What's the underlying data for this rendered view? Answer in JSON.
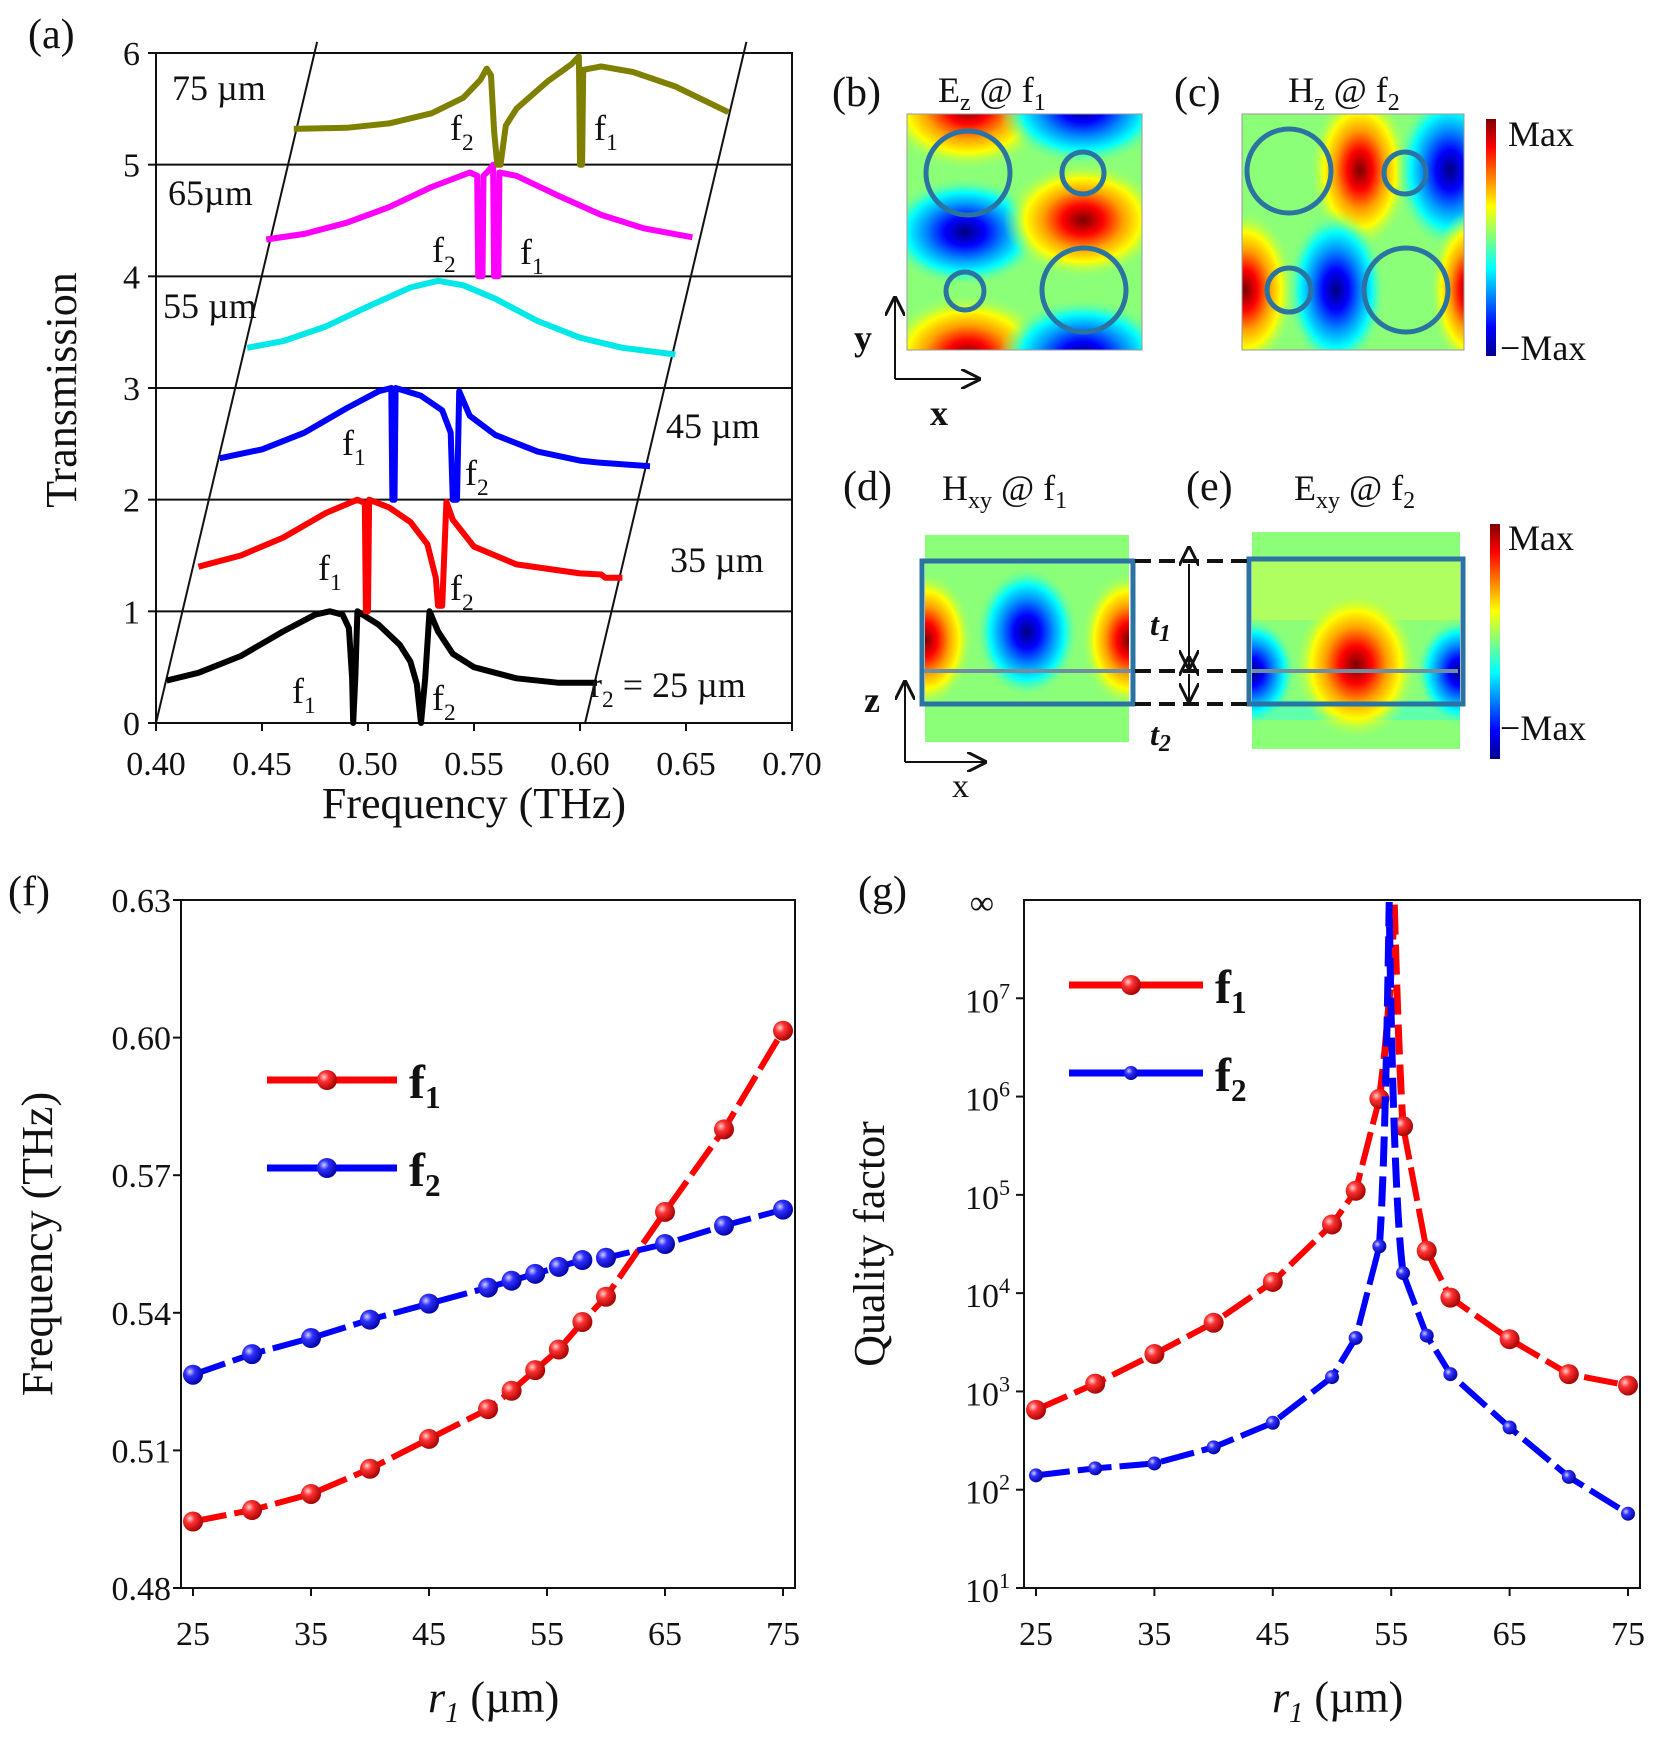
{
  "panel_labels": {
    "a": "(a)",
    "b": "(b)",
    "c": "(c)",
    "d": "(d)",
    "e": "(e)",
    "f": "(f)",
    "g": "(g)"
  },
  "field_maps": {
    "b": {
      "field": "E",
      "field_sub": "z",
      "at": " @ f",
      "freq_sub": "1"
    },
    "c": {
      "field": "H",
      "field_sub": "z",
      "at": " @ f",
      "freq_sub": "2"
    },
    "d": {
      "field": "H",
      "field_sub": "xy",
      "at": " @ f",
      "freq_sub": "1"
    },
    "e": {
      "field": "E",
      "field_sub": "xy",
      "at": " @ f",
      "freq_sub": "2"
    }
  },
  "colorbar": {
    "max_label": "Max",
    "min_label": "−Max",
    "colormap": "jet"
  },
  "coord_axes": {
    "top_vertical": "y",
    "top_horizontal": "x",
    "bottom_vertical": "z",
    "bottom_horizontal": "x"
  },
  "thickness": {
    "t1": "t",
    "t1_sub": "1",
    "t2": "t",
    "t2_sub": "2"
  },
  "colors": {
    "olive": "#808000",
    "magenta": "#ff00ff",
    "cyan": "#00e8e8",
    "blue": "#0000ff",
    "red": "#ff0000",
    "black": "#000000",
    "ring": "#2b73a0"
  },
  "chart_data": [
    {
      "id": "a",
      "type": "line",
      "xlabel": "Frequency (THz)",
      "ylabel": "Transmission",
      "xlim": [
        0.4,
        0.7
      ],
      "ylim": [
        0,
        6
      ],
      "xticks": [
        "0.40",
        "0.45",
        "0.50",
        "0.55",
        "0.60",
        "0.65",
        "0.70"
      ],
      "yticks": [
        "0",
        "1",
        "2",
        "3",
        "4",
        "5",
        "6"
      ],
      "grid": "horizontal lines at each integer",
      "series": [
        {
          "label": "r",
          "label_sub": "2",
          "label_rest": " = 25 µm",
          "color": "#000000",
          "annotations": [
            [
              "f",
              "1"
            ],
            [
              "f",
              "2"
            ]
          ],
          "points": [
            [
              0.405,
              0.38
            ],
            [
              0.42,
              0.45
            ],
            [
              0.44,
              0.6
            ],
            [
              0.46,
              0.82
            ],
            [
              0.475,
              0.97
            ],
            [
              0.482,
              1.0
            ],
            [
              0.488,
              0.97
            ],
            [
              0.491,
              0.85
            ],
            [
              0.4925,
              0.4
            ],
            [
              0.493,
              0
            ],
            [
              0.494,
              0.4
            ],
            [
              0.495,
              1.0
            ],
            [
              0.505,
              0.88
            ],
            [
              0.515,
              0.7
            ],
            [
              0.52,
              0.55
            ],
            [
              0.523,
              0.35
            ],
            [
              0.525,
              0
            ],
            [
              0.527,
              0.4
            ],
            [
              0.529,
              1.0
            ],
            [
              0.533,
              0.82
            ],
            [
              0.54,
              0.62
            ],
            [
              0.55,
              0.5
            ],
            [
              0.57,
              0.4
            ],
            [
              0.59,
              0.36
            ],
            [
              0.608,
              0.36
            ]
          ]
        },
        {
          "label": "35 µm",
          "color": "#ff0000",
          "annotations": [
            [
              "f",
              "1"
            ],
            [
              "f",
              "2"
            ]
          ],
          "points": [
            [
              0.42,
              1.4
            ],
            [
              0.44,
              1.5
            ],
            [
              0.46,
              1.66
            ],
            [
              0.48,
              1.88
            ],
            [
              0.495,
              2.0
            ],
            [
              0.4985,
              1.97
            ],
            [
              0.499,
              1.0
            ],
            [
              0.5,
              1.0
            ],
            [
              0.5005,
              2.0
            ],
            [
              0.51,
              1.93
            ],
            [
              0.52,
              1.8
            ],
            [
              0.528,
              1.6
            ],
            [
              0.532,
              1.3
            ],
            [
              0.533,
              1.05
            ],
            [
              0.535,
              1.05
            ],
            [
              0.537,
              1.98
            ],
            [
              0.54,
              1.82
            ],
            [
              0.55,
              1.58
            ],
            [
              0.57,
              1.42
            ],
            [
              0.6,
              1.34
            ],
            [
              0.61,
              1.33
            ],
            [
              0.612,
              1.3
            ],
            [
              0.62,
              1.3
            ]
          ]
        },
        {
          "label": "45 µm",
          "color": "#0000ff",
          "annotations": [
            [
              "f",
              "1"
            ],
            [
              "f",
              "2"
            ]
          ],
          "points": [
            [
              0.43,
              2.37
            ],
            [
              0.45,
              2.45
            ],
            [
              0.47,
              2.6
            ],
            [
              0.49,
              2.82
            ],
            [
              0.505,
              2.97
            ],
            [
              0.511,
              3.0
            ],
            [
              0.5115,
              2.0
            ],
            [
              0.5125,
              2.0
            ],
            [
              0.513,
              3.0
            ],
            [
              0.525,
              2.93
            ],
            [
              0.535,
              2.8
            ],
            [
              0.539,
              2.6
            ],
            [
              0.54,
              2.0
            ],
            [
              0.542,
              2.0
            ],
            [
              0.543,
              2.97
            ],
            [
              0.548,
              2.75
            ],
            [
              0.56,
              2.58
            ],
            [
              0.58,
              2.43
            ],
            [
              0.6,
              2.35
            ],
            [
              0.61,
              2.33
            ],
            [
              0.633,
              2.3
            ]
          ]
        },
        {
          "label": "55 µm",
          "color": "#00e8e8",
          "annotations": [],
          "points": [
            [
              0.443,
              3.36
            ],
            [
              0.46,
              3.42
            ],
            [
              0.48,
              3.55
            ],
            [
              0.5,
              3.73
            ],
            [
              0.52,
              3.9
            ],
            [
              0.533,
              3.96
            ],
            [
              0.545,
              3.92
            ],
            [
              0.56,
              3.8
            ],
            [
              0.58,
              3.6
            ],
            [
              0.6,
              3.45
            ],
            [
              0.62,
              3.36
            ],
            [
              0.645,
              3.3
            ]
          ]
        },
        {
          "label": "65µm",
          "color": "#ff00ff",
          "annotations": [
            [
              "f",
              "2"
            ],
            [
              "f",
              "1"
            ]
          ],
          "points": [
            [
              0.452,
              4.33
            ],
            [
              0.47,
              4.38
            ],
            [
              0.49,
              4.48
            ],
            [
              0.51,
              4.62
            ],
            [
              0.53,
              4.8
            ],
            [
              0.548,
              4.93
            ],
            [
              0.5515,
              4.9
            ],
            [
              0.552,
              4.0
            ],
            [
              0.554,
              4.0
            ],
            [
              0.5545,
              4.9
            ],
            [
              0.557,
              4.95
            ],
            [
              0.559,
              5.0
            ],
            [
              0.5595,
              4.0
            ],
            [
              0.5615,
              4.0
            ],
            [
              0.562,
              4.93
            ],
            [
              0.57,
              4.9
            ],
            [
              0.59,
              4.72
            ],
            [
              0.61,
              4.55
            ],
            [
              0.63,
              4.43
            ],
            [
              0.653,
              4.35
            ]
          ]
        },
        {
          "label": "75 µm",
          "color": "#808000",
          "annotations": [
            [
              "f",
              "2"
            ],
            [
              "f",
              "1"
            ]
          ],
          "points": [
            [
              0.465,
              5.32
            ],
            [
              0.49,
              5.33
            ],
            [
              0.51,
              5.37
            ],
            [
              0.53,
              5.46
            ],
            [
              0.545,
              5.6
            ],
            [
              0.553,
              5.76
            ],
            [
              0.556,
              5.86
            ],
            [
              0.558,
              5.8
            ],
            [
              0.5595,
              5.3
            ],
            [
              0.561,
              5.0
            ],
            [
              0.5625,
              5.0
            ],
            [
              0.565,
              5.35
            ],
            [
              0.57,
              5.5
            ],
            [
              0.585,
              5.75
            ],
            [
              0.596,
              5.9
            ],
            [
              0.5995,
              5.97
            ],
            [
              0.6,
              5.0
            ],
            [
              0.601,
              5.0
            ],
            [
              0.6015,
              5.85
            ],
            [
              0.61,
              5.88
            ],
            [
              0.625,
              5.83
            ],
            [
              0.645,
              5.7
            ],
            [
              0.67,
              5.47
            ]
          ]
        }
      ]
    },
    {
      "id": "f",
      "type": "line",
      "xlabel": "r",
      "xlabel_sub": "1",
      "xlabel_rest": " (µm)",
      "ylabel": "Frequency (THz)",
      "xlim": [
        25,
        75
      ],
      "ylim": [
        0.48,
        0.63
      ],
      "xticks": [
        "25",
        "35",
        "45",
        "55",
        "65",
        "75"
      ],
      "yticks": [
        "0.48",
        "0.51",
        "0.54",
        "0.57",
        "0.60",
        "0.63"
      ],
      "legend": "upper-left",
      "x": [
        25,
        30,
        35,
        40,
        45,
        50,
        52,
        54,
        56,
        58,
        60,
        65,
        70,
        75
      ],
      "series": [
        {
          "name": "f",
          "name_sub": "1",
          "color": "#ff0000",
          "values": [
            0.4945,
            0.497,
            0.5005,
            0.506,
            0.5125,
            0.519,
            0.523,
            0.5275,
            0.532,
            0.538,
            0.5435,
            0.562,
            0.58,
            0.6015
          ]
        },
        {
          "name": "f",
          "name_sub": "2",
          "color": "#0000ff",
          "values": [
            0.5265,
            0.531,
            0.5345,
            0.5385,
            0.542,
            0.5455,
            0.547,
            0.5485,
            0.55,
            0.5515,
            0.552,
            0.555,
            0.559,
            0.5625
          ]
        }
      ]
    },
    {
      "id": "g",
      "type": "line",
      "yscale": "log",
      "xlabel": "r",
      "xlabel_sub": "1",
      "xlabel_rest": " (µm)",
      "ylabel": "Quality factor",
      "xlim": [
        25,
        75
      ],
      "ylim": [
        10,
        100000000
      ],
      "xticks": [
        "25",
        "35",
        "45",
        "55",
        "65",
        "75"
      ],
      "yticks": [
        [
          "10",
          "1"
        ],
        [
          "10",
          "2"
        ],
        [
          "10",
          "3"
        ],
        [
          "10",
          "4"
        ],
        [
          "10",
          "5"
        ],
        [
          "10",
          "6"
        ],
        [
          "10",
          "7"
        ]
      ],
      "ytop_label": "∞",
      "legend": "upper-left",
      "divergence_x": 55,
      "x": [
        25,
        30,
        35,
        40,
        45,
        50,
        52,
        54,
        56,
        58,
        60,
        65,
        70,
        75
      ],
      "series": [
        {
          "name": "f",
          "name_sub": "1",
          "color": "#ff0000",
          "values": [
            650,
            1200,
            2400,
            5000,
            13000,
            50000,
            110000,
            950000,
            500000,
            27000,
            9000,
            3400,
            1500,
            1150
          ]
        },
        {
          "name": "f",
          "name_sub": "2",
          "color": "#0000ff",
          "values": [
            140,
            165,
            185,
            270,
            480,
            1400,
            3500,
            30000,
            16000,
            3700,
            1500,
            430,
            135,
            57
          ]
        }
      ]
    }
  ]
}
